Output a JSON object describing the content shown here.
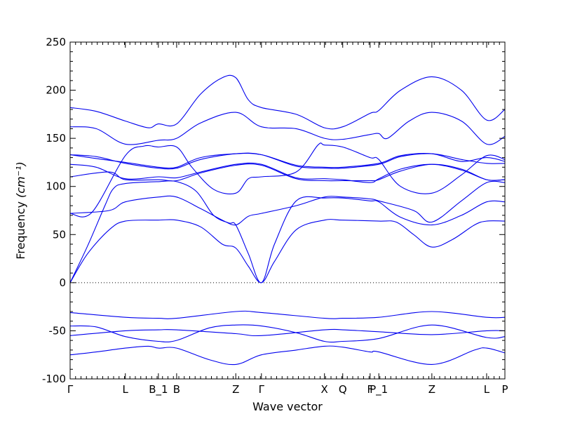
{
  "chart_data": {
    "type": "line",
    "xlabel": "Wave vector",
    "ylabel_text": "Frequency",
    "ylabel_unit": "(cm⁻¹)",
    "ylim": [
      -100,
      250
    ],
    "xlim": [
      0,
      1
    ],
    "yticks": [
      -100,
      -50,
      0,
      50,
      100,
      150,
      200,
      250
    ],
    "xticks": [
      {
        "label": "Γ",
        "x": 0.0
      },
      {
        "label": "L",
        "x": 0.127
      },
      {
        "label": "B_1",
        "x": 0.203
      },
      {
        "label": "B",
        "x": 0.245
      },
      {
        "label": "Z",
        "x": 0.381
      },
      {
        "label": "Γ",
        "x": 0.44
      },
      {
        "label": "X",
        "x": 0.585
      },
      {
        "label": "Q",
        "x": 0.627
      },
      {
        "label": "F",
        "x": 0.69
      },
      {
        "label": "P_1",
        "x": 0.71
      },
      {
        "label": "Z",
        "x": 0.832
      },
      {
        "label": "L",
        "x": 0.958
      },
      {
        "label": "P",
        "x": 1.0
      }
    ],
    "zero_line": true,
    "line_color": "#0000ee",
    "series": [
      {
        "values": [
          [
            0,
            -75
          ],
          [
            0.06,
            -72
          ],
          [
            0.127,
            -68
          ],
          [
            0.18,
            -66
          ],
          [
            0.203,
            -68
          ],
          [
            0.245,
            -68
          ],
          [
            0.32,
            -80
          ],
          [
            0.381,
            -85
          ],
          [
            0.44,
            -75
          ],
          [
            0.52,
            -70
          ],
          [
            0.585,
            -66
          ],
          [
            0.627,
            -67
          ],
          [
            0.69,
            -72
          ],
          [
            0.71,
            -72
          ],
          [
            0.832,
            -85
          ],
          [
            0.93,
            -70
          ],
          [
            0.958,
            -68
          ],
          [
            1.0,
            -73
          ]
        ]
      },
      {
        "values": [
          [
            0,
            -55
          ],
          [
            0.127,
            -50
          ],
          [
            0.203,
            -49
          ],
          [
            0.245,
            -49
          ],
          [
            0.381,
            -53
          ],
          [
            0.44,
            -55
          ],
          [
            0.585,
            -49
          ],
          [
            0.627,
            -49
          ],
          [
            0.71,
            -51
          ],
          [
            0.832,
            -54
          ],
          [
            0.958,
            -50
          ],
          [
            1.0,
            -50
          ]
        ]
      },
      {
        "values": [
          [
            0,
            -45
          ],
          [
            0.06,
            -46
          ],
          [
            0.127,
            -56
          ],
          [
            0.203,
            -61
          ],
          [
            0.245,
            -60
          ],
          [
            0.32,
            -47
          ],
          [
            0.381,
            -44
          ],
          [
            0.44,
            -45
          ],
          [
            0.52,
            -52
          ],
          [
            0.585,
            -61
          ],
          [
            0.627,
            -61
          ],
          [
            0.71,
            -58
          ],
          [
            0.832,
            -44
          ],
          [
            0.958,
            -57
          ],
          [
            1.0,
            -56
          ]
        ]
      },
      {
        "values": [
          [
            0,
            -31
          ],
          [
            0.127,
            -36
          ],
          [
            0.203,
            -37
          ],
          [
            0.245,
            -37
          ],
          [
            0.381,
            -30
          ],
          [
            0.44,
            -31
          ],
          [
            0.585,
            -37
          ],
          [
            0.627,
            -37
          ],
          [
            0.71,
            -36
          ],
          [
            0.832,
            -30
          ],
          [
            0.958,
            -36
          ],
          [
            1.0,
            -36
          ]
        ]
      },
      {
        "values": [
          [
            0,
            0
          ],
          [
            0.04,
            30
          ],
          [
            0.09,
            55
          ],
          [
            0.127,
            64
          ],
          [
            0.203,
            65
          ],
          [
            0.245,
            65
          ],
          [
            0.3,
            58
          ],
          [
            0.35,
            40
          ],
          [
            0.381,
            36
          ],
          [
            0.41,
            17
          ],
          [
            0.44,
            0
          ],
          [
            0.47,
            22
          ],
          [
            0.52,
            55
          ],
          [
            0.585,
            65
          ],
          [
            0.627,
            65
          ],
          [
            0.71,
            64
          ],
          [
            0.75,
            63
          ],
          [
            0.79,
            50
          ],
          [
            0.832,
            37
          ],
          [
            0.88,
            45
          ],
          [
            0.93,
            60
          ],
          [
            0.958,
            64
          ],
          [
            1.0,
            64
          ]
        ]
      },
      {
        "values": [
          [
            0,
            0
          ],
          [
            0.04,
            38
          ],
          [
            0.08,
            80
          ],
          [
            0.1,
            98
          ],
          [
            0.127,
            103
          ],
          [
            0.203,
            105
          ],
          [
            0.245,
            105
          ],
          [
            0.29,
            95
          ],
          [
            0.33,
            70
          ],
          [
            0.365,
            62
          ],
          [
            0.381,
            60
          ],
          [
            0.41,
            30
          ],
          [
            0.44,
            0
          ],
          [
            0.47,
            40
          ],
          [
            0.52,
            85
          ],
          [
            0.585,
            88
          ],
          [
            0.627,
            88
          ],
          [
            0.69,
            85
          ],
          [
            0.71,
            84
          ],
          [
            0.76,
            68
          ],
          [
            0.832,
            60
          ],
          [
            0.9,
            70
          ],
          [
            0.958,
            84
          ],
          [
            1.0,
            84
          ]
        ]
      },
      {
        "values": [
          [
            0,
            72
          ],
          [
            0.09,
            75
          ],
          [
            0.127,
            84
          ],
          [
            0.203,
            89
          ],
          [
            0.245,
            89
          ],
          [
            0.3,
            77
          ],
          [
            0.35,
            65
          ],
          [
            0.381,
            60
          ],
          [
            0.41,
            69
          ],
          [
            0.44,
            72
          ],
          [
            0.52,
            80
          ],
          [
            0.585,
            89
          ],
          [
            0.627,
            89
          ],
          [
            0.69,
            87
          ],
          [
            0.71,
            85
          ],
          [
            0.79,
            75
          ],
          [
            0.832,
            63
          ],
          [
            0.9,
            85
          ],
          [
            0.958,
            104
          ],
          [
            1.0,
            104
          ]
        ]
      },
      {
        "values": [
          [
            0,
            110
          ],
          [
            0.09,
            115
          ],
          [
            0.127,
            107
          ],
          [
            0.203,
            107
          ],
          [
            0.245,
            106
          ],
          [
            0.3,
            114
          ],
          [
            0.381,
            122
          ],
          [
            0.44,
            122
          ],
          [
            0.52,
            108
          ],
          [
            0.585,
            106
          ],
          [
            0.627,
            106
          ],
          [
            0.69,
            106
          ],
          [
            0.71,
            107
          ],
          [
            0.76,
            116
          ],
          [
            0.832,
            123
          ],
          [
            0.9,
            118
          ],
          [
            0.958,
            107
          ],
          [
            1.0,
            107
          ]
        ]
      },
      {
        "values": [
          [
            0,
            123
          ],
          [
            0.06,
            120
          ],
          [
            0.127,
            108
          ],
          [
            0.203,
            110
          ],
          [
            0.245,
            109
          ],
          [
            0.3,
            115
          ],
          [
            0.381,
            123
          ],
          [
            0.44,
            123
          ],
          [
            0.52,
            109
          ],
          [
            0.585,
            108
          ],
          [
            0.627,
            107
          ],
          [
            0.69,
            104
          ],
          [
            0.71,
            108
          ],
          [
            0.76,
            118
          ],
          [
            0.832,
            123
          ],
          [
            0.9,
            117
          ],
          [
            0.958,
            107
          ],
          [
            1.0,
            107
          ]
        ]
      },
      {
        "values": [
          [
            0,
            133
          ],
          [
            0.06,
            131
          ],
          [
            0.127,
            124
          ],
          [
            0.203,
            119
          ],
          [
            0.245,
            119
          ],
          [
            0.3,
            128
          ],
          [
            0.381,
            134
          ],
          [
            0.44,
            133
          ],
          [
            0.52,
            121
          ],
          [
            0.585,
            119
          ],
          [
            0.627,
            119
          ],
          [
            0.71,
            123
          ],
          [
            0.76,
            131
          ],
          [
            0.832,
            134
          ],
          [
            0.9,
            128
          ],
          [
            0.958,
            124
          ],
          [
            1.0,
            124
          ]
        ]
      },
      {
        "values": [
          [
            0,
            133
          ],
          [
            0.06,
            129
          ],
          [
            0.127,
            125
          ],
          [
            0.203,
            120
          ],
          [
            0.245,
            120
          ],
          [
            0.3,
            130
          ],
          [
            0.381,
            134
          ],
          [
            0.44,
            133
          ],
          [
            0.52,
            122
          ],
          [
            0.585,
            120
          ],
          [
            0.627,
            120
          ],
          [
            0.71,
            124
          ],
          [
            0.76,
            132
          ],
          [
            0.832,
            134
          ],
          [
            0.9,
            126
          ],
          [
            0.958,
            130
          ],
          [
            1.0,
            126
          ]
        ]
      },
      {
        "values": [
          [
            0,
            72
          ],
          [
            0.05,
            73
          ],
          [
            0.127,
            132
          ],
          [
            0.17,
            142
          ],
          [
            0.203,
            141
          ],
          [
            0.245,
            141
          ],
          [
            0.28,
            120
          ],
          [
            0.33,
            97
          ],
          [
            0.381,
            93
          ],
          [
            0.41,
            108
          ],
          [
            0.44,
            110
          ],
          [
            0.52,
            115
          ],
          [
            0.57,
            143
          ],
          [
            0.585,
            143
          ],
          [
            0.627,
            141
          ],
          [
            0.69,
            130
          ],
          [
            0.71,
            128
          ],
          [
            0.76,
            100
          ],
          [
            0.832,
            93
          ],
          [
            0.9,
            112
          ],
          [
            0.958,
            132
          ],
          [
            1.0,
            128
          ]
        ]
      },
      {
        "values": [
          [
            0,
            162
          ],
          [
            0.06,
            160
          ],
          [
            0.127,
            144
          ],
          [
            0.203,
            148
          ],
          [
            0.245,
            150
          ],
          [
            0.3,
            166
          ],
          [
            0.381,
            177
          ],
          [
            0.44,
            162
          ],
          [
            0.52,
            160
          ],
          [
            0.585,
            150
          ],
          [
            0.627,
            149
          ],
          [
            0.69,
            154
          ],
          [
            0.71,
            155
          ],
          [
            0.73,
            150
          ],
          [
            0.78,
            168
          ],
          [
            0.832,
            177
          ],
          [
            0.9,
            168
          ],
          [
            0.958,
            144
          ],
          [
            1.0,
            152
          ]
        ]
      },
      {
        "values": [
          [
            0,
            182
          ],
          [
            0.06,
            178
          ],
          [
            0.127,
            168
          ],
          [
            0.18,
            161
          ],
          [
            0.203,
            165
          ],
          [
            0.245,
            165
          ],
          [
            0.3,
            196
          ],
          [
            0.35,
            213
          ],
          [
            0.381,
            213
          ],
          [
            0.41,
            190
          ],
          [
            0.44,
            182
          ],
          [
            0.52,
            175
          ],
          [
            0.585,
            161
          ],
          [
            0.627,
            162
          ],
          [
            0.69,
            176
          ],
          [
            0.71,
            179
          ],
          [
            0.76,
            200
          ],
          [
            0.832,
            214
          ],
          [
            0.9,
            200
          ],
          [
            0.958,
            169
          ],
          [
            1.0,
            180
          ]
        ]
      }
    ]
  }
}
